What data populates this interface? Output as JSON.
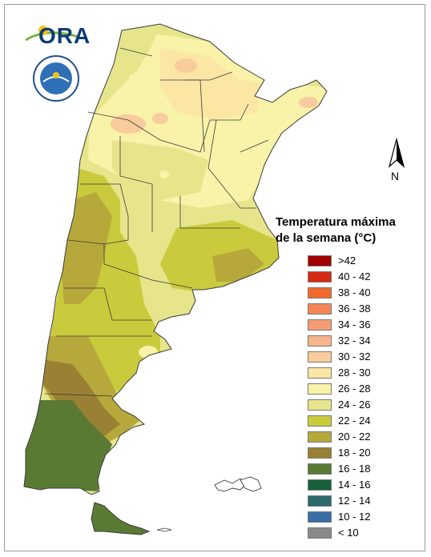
{
  "header": {
    "logo_text": "ORA",
    "seal_text": "SERVICIO METEOROLÓGICO NACIONAL · ARGENTINA",
    "seal_center": "SMN"
  },
  "north_arrow": {
    "label": "N"
  },
  "legend": {
    "title_line1": "Temperatura máxima",
    "title_line2": "de la semana (°C)",
    "items": [
      {
        "label": ">42",
        "color": "#a00000"
      },
      {
        "label": "40 - 42",
        "color": "#d62a14"
      },
      {
        "label": "38 - 40",
        "color": "#f06a2c"
      },
      {
        "label": "36 - 38",
        "color": "#f48656"
      },
      {
        "label": "34 - 36",
        "color": "#f59c74"
      },
      {
        "label": "32 - 34",
        "color": "#f6b58c"
      },
      {
        "label": "30 - 32",
        "color": "#f8cc9c"
      },
      {
        "label": "28 - 30",
        "color": "#fbe6a4"
      },
      {
        "label": "26 - 28",
        "color": "#f8f3a8"
      },
      {
        "label": "24 - 26",
        "color": "#e6e58c"
      },
      {
        "label": "22 - 24",
        "color": "#cacb3c"
      },
      {
        "label": "20 - 22",
        "color": "#b7a83c"
      },
      {
        "label": "18 - 20",
        "color": "#9a8033"
      },
      {
        "label": "16 - 18",
        "color": "#5a7a34"
      },
      {
        "label": "14 - 16",
        "color": "#18623a"
      },
      {
        "label": "12 - 14",
        "color": "#2d6a6a"
      },
      {
        "label": "10 - 12",
        "color": "#3a6ea6"
      },
      {
        "label": "< 10",
        "color": "#8a8a8a"
      }
    ]
  },
  "map_colors": {
    "outline": "#3a3a3a",
    "c26_28": "#f8f3a8",
    "c28_30": "#fbe6a4",
    "c30_32": "#f8cc9c",
    "c24_26": "#e6e58c",
    "c22_24": "#cacb3c",
    "c20_22": "#b7a83c",
    "c18_20": "#9a8033",
    "c16_18": "#5a7a34"
  }
}
